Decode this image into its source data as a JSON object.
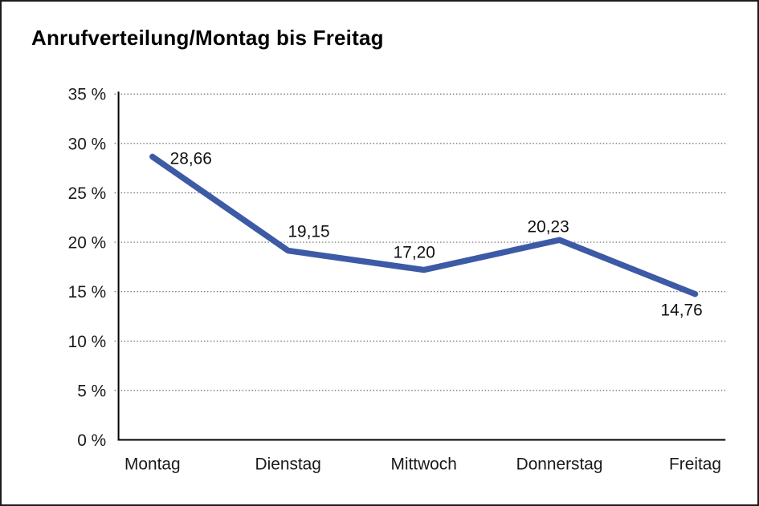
{
  "chart_data": {
    "type": "line",
    "title": "Anrufverteilung/Montag bis Freitag",
    "categories": [
      "Montag",
      "Dienstag",
      "Mittwoch",
      "Donnerstag",
      "Freitag"
    ],
    "values": [
      28.66,
      19.15,
      17.2,
      20.23,
      14.76
    ],
    "value_labels": [
      "28,66",
      "19,15",
      "17,20",
      "20,23",
      "14,76"
    ],
    "xlabel": "",
    "ylabel": "",
    "ylim": [
      0,
      35
    ],
    "y_ticks": [
      {
        "label": "35 %",
        "value": 35
      },
      {
        "label": "30 %",
        "value": 30
      },
      {
        "label": "25 %",
        "value": 25
      },
      {
        "label": "20 %",
        "value": 20
      },
      {
        "label": "15 %",
        "value": 15
      },
      {
        "label": "10 %",
        "value": 10
      },
      {
        "label": "5 %",
        "value": 5
      },
      {
        "label": "0 %",
        "value": 0
      }
    ],
    "grid": "horizontal-dotted",
    "legend": "none",
    "colors": {
      "line": "#3D5AA6",
      "grid": "#666666",
      "axis": "#000000",
      "text": "#1A1A1A",
      "background": "#FFFFFF",
      "border": "#1B1B1B"
    }
  }
}
